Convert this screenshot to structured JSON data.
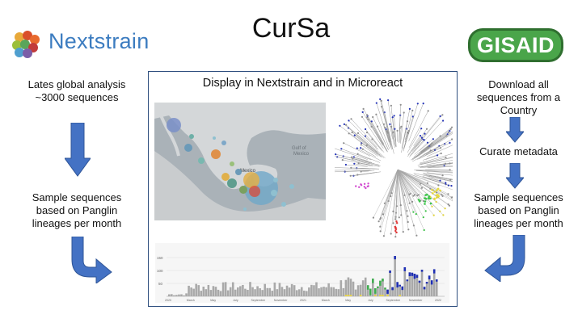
{
  "title": "CurSa",
  "logos": {
    "left": "Nextstrain",
    "right": "GISAID"
  },
  "left_column": {
    "top_text": "Lates global analysis\n~3000 sequences",
    "bottom_text": "Sample sequences\nbased on Panglin\nlineages per month"
  },
  "right_column": {
    "step1": "Download all\nsequences from a\nCountry",
    "step2": "Curate metadata",
    "step3": "Sample sequences\nbased on Panglin\nlineages per month"
  },
  "center_panel": {
    "title": "Display in Nextstrain and in Microreact",
    "map_labels": [
      "Gulf of\nMexico",
      "Mexico"
    ],
    "timeline_ticks": [
      "2020",
      "March",
      "May",
      "July",
      "September",
      "November",
      "2021",
      "March",
      "May",
      "July",
      "September",
      "November",
      "2022"
    ],
    "timeline_yticks": [
      "150",
      "100",
      "50"
    ]
  },
  "colors": {
    "arrow": "#4472c4",
    "arrow_stroke": "#2f5597",
    "box_border": "#2f4f7f",
    "nextstrain_text": "#3c7cc0",
    "gisaid_bg": "#3e8a3e"
  }
}
